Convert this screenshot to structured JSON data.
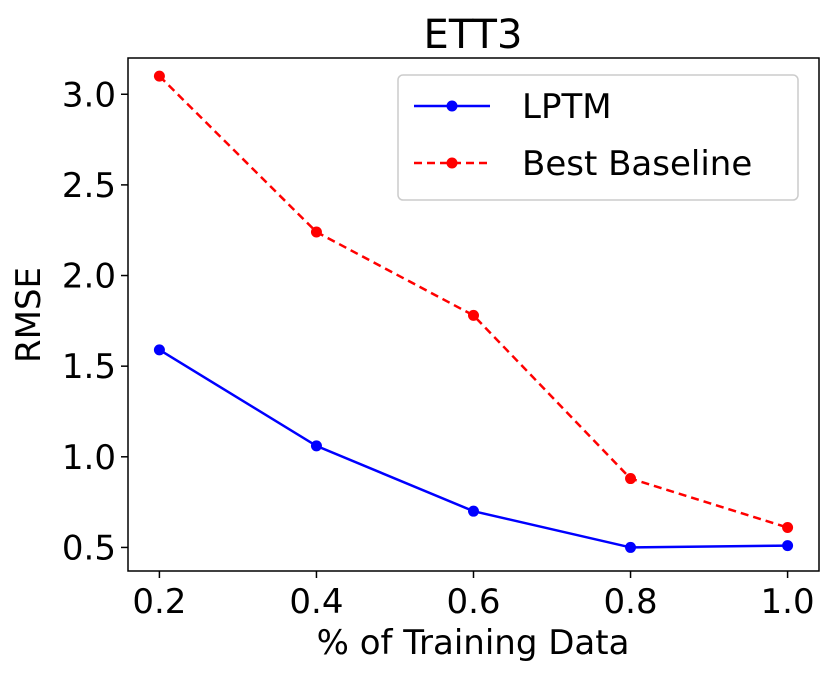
{
  "chart_data": {
    "type": "line",
    "title": "ETT3",
    "xlabel": "% of Training Data",
    "ylabel": "RMSE",
    "x": [
      0.2,
      0.4,
      0.6,
      0.8,
      1.0
    ],
    "x_tick_labels": [
      "0.2",
      "0.4",
      "0.6",
      "0.8",
      "1.0"
    ],
    "y_ticks": [
      0.5,
      1.0,
      1.5,
      2.0,
      2.5,
      3.0
    ],
    "y_tick_labels": [
      "0.5",
      "1.0",
      "1.5",
      "2.0",
      "2.5",
      "3.0"
    ],
    "xlim": [
      0.16,
      1.04
    ],
    "ylim": [
      0.37,
      3.2
    ],
    "grid": false,
    "legend_position": "top-right",
    "series": [
      {
        "name": "LPTM",
        "values": [
          1.59,
          1.06,
          0.7,
          0.5,
          0.51
        ],
        "color": "#0000ff",
        "dashed": false
      },
      {
        "name": "Best Baseline",
        "values": [
          3.1,
          2.24,
          1.78,
          0.88,
          0.61
        ],
        "color": "#ff0000",
        "dashed": true
      }
    ]
  }
}
